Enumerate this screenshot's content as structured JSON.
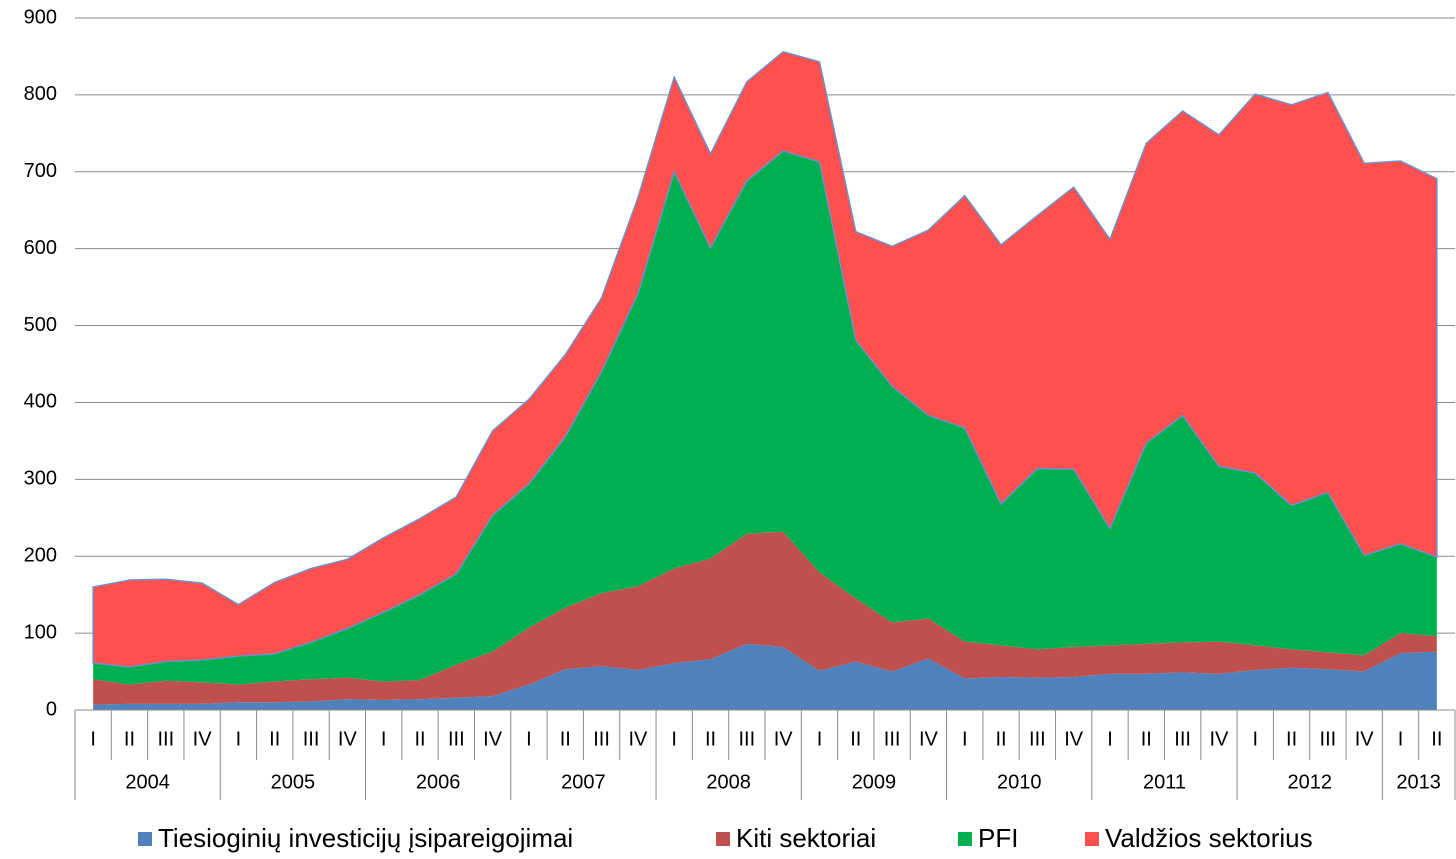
{
  "chart_data": {
    "type": "stacked_area",
    "categories": [
      "I",
      "II",
      "III",
      "IV",
      "I",
      "II",
      "III",
      "IV",
      "I",
      "II",
      "III",
      "IV",
      "I",
      "II",
      "III",
      "IV",
      "I",
      "II",
      "III",
      "IV",
      "I",
      "II",
      "III",
      "IV",
      "I",
      "II",
      "III",
      "IV",
      "I",
      "II",
      "III",
      "IV",
      "I",
      "II",
      "III",
      "IV",
      "I",
      "II"
    ],
    "groups": [
      "2004",
      "2005",
      "2006",
      "2007",
      "2008",
      "2009",
      "2010",
      "2011",
      "2012",
      "2013"
    ],
    "series": [
      {
        "name": "Tiesioginių investicijų įsipareigojimai",
        "color": "#4f81bd",
        "values": [
          7,
          8,
          8,
          8,
          10,
          10,
          11,
          14,
          13,
          14,
          16,
          18,
          33,
          53,
          57,
          52,
          61,
          66,
          86,
          82,
          51,
          63,
          50,
          67,
          41,
          43,
          42,
          43,
          47,
          47,
          49,
          47,
          52,
          55,
          53,
          50,
          74,
          76
        ]
      },
      {
        "name": "Kiti sektoriai",
        "color": "#c0504d",
        "values": [
          33,
          25,
          30,
          28,
          23,
          27,
          29,
          28,
          24,
          25,
          43,
          58,
          74,
          80,
          95,
          109,
          123,
          131,
          143,
          150,
          128,
          82,
          64,
          52,
          48,
          41,
          37,
          39,
          37,
          39,
          39,
          42,
          32,
          24,
          22,
          21,
          26,
          20
        ]
      },
      {
        "name": "PFI",
        "color": "#00b050",
        "values": [
          21,
          23,
          25,
          29,
          37,
          36,
          48,
          64,
          90,
          111,
          118,
          177,
          187,
          222,
          288,
          380,
          516,
          404,
          459,
          495,
          534,
          336,
          307,
          264,
          278,
          184,
          235,
          231,
          152,
          261,
          295,
          228,
          224,
          187,
          208,
          130,
          116,
          103
        ]
      },
      {
        "name": "Valdžios sektorius",
        "color": "#ff5050",
        "values": [
          99,
          113,
          107,
          100,
          67,
          93,
          96,
          90,
          97,
          99,
          100,
          110,
          110,
          107,
          96,
          125,
          123,
          122,
          129,
          129,
          130,
          141,
          182,
          241,
          302,
          337,
          329,
          367,
          376,
          390,
          396,
          431,
          493,
          521,
          520,
          510,
          498,
          492
        ]
      }
    ],
    "ylim": [
      0,
      900
    ],
    "yticks": [
      0,
      100,
      200,
      300,
      400,
      500,
      600,
      700,
      800,
      900
    ],
    "grid": true,
    "legend": "bottom"
  }
}
